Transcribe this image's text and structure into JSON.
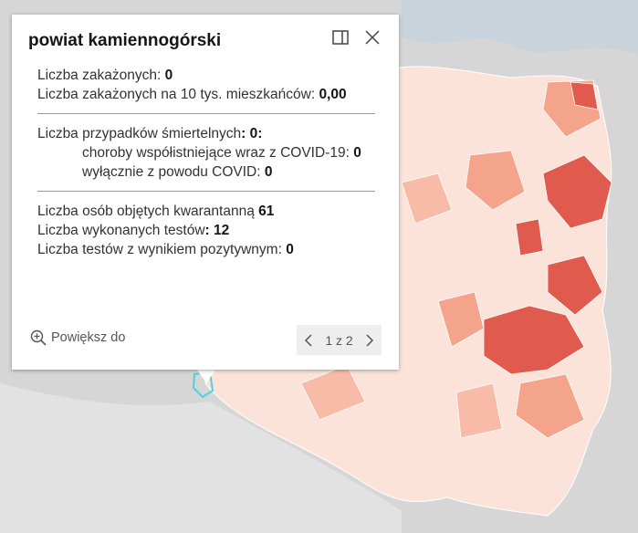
{
  "popup": {
    "title": "powiat kamiennogórski",
    "sections": [
      {
        "lines": [
          {
            "label": "Liczba zakażonych: ",
            "value": "0"
          },
          {
            "label": "Liczba zakażonych na 10 tys. mieszkańców: ",
            "value": "0,00"
          }
        ]
      },
      {
        "lines": [
          {
            "label": "Liczba przypadków śmiertelnych",
            "value": ": 0:"
          },
          {
            "label": "choroby współistniejące wraz z COVID-19: ",
            "value": "0",
            "indent": true
          },
          {
            "label": "wyłącznie z powodu COVID: ",
            "value": "0",
            "indent": true
          }
        ]
      },
      {
        "lines": [
          {
            "label": "Liczba osób objętych kwarantanną ",
            "value": "61"
          },
          {
            "label": "Liczba wykonanych testów",
            "value": ": 12"
          },
          {
            "label": "Liczba testów z wynikiem pozytywnym: ",
            "value": "0"
          }
        ]
      }
    ],
    "zoom": "Powiększ do",
    "pager": "1 z 2"
  }
}
